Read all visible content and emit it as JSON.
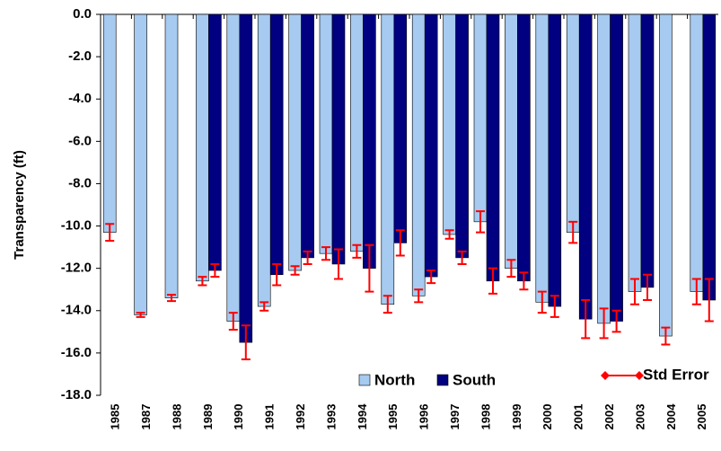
{
  "chart_data": {
    "type": "bar",
    "y_label": "Transparency (ft)",
    "categories": [
      "1985",
      "1987",
      "1988",
      "1989",
      "1990",
      "1991",
      "1992",
      "1993",
      "1994",
      "1995",
      "1996",
      "1997",
      "1998",
      "1999",
      "2000",
      "2001",
      "2002",
      "2003",
      "2004",
      "2005"
    ],
    "series": [
      {
        "name": "North",
        "color": "#a6caf0",
        "values": [
          -10.3,
          -14.2,
          -13.4,
          -12.6,
          -14.5,
          -13.8,
          -12.1,
          -11.3,
          -11.2,
          -13.7,
          -13.3,
          -10.4,
          -9.8,
          -12.0,
          -13.6,
          -10.3,
          -14.6,
          -13.1,
          -15.2,
          -13.1
        ],
        "error": [
          0.4,
          0.1,
          0.15,
          0.2,
          0.4,
          0.2,
          0.2,
          0.3,
          0.3,
          0.4,
          0.3,
          0.2,
          0.5,
          0.4,
          0.5,
          0.5,
          0.7,
          0.6,
          0.4,
          0.6
        ]
      },
      {
        "name": "South",
        "color": "#000080",
        "values": [
          null,
          null,
          null,
          -12.1,
          -15.5,
          -12.3,
          -11.5,
          -11.8,
          -12.0,
          -10.8,
          -12.4,
          -11.5,
          -12.6,
          -12.6,
          -13.8,
          -14.4,
          -14.5,
          -12.9,
          null,
          -13.5
        ],
        "error": [
          null,
          null,
          null,
          0.3,
          0.8,
          0.5,
          0.3,
          0.7,
          1.1,
          0.6,
          0.3,
          0.3,
          0.6,
          0.4,
          0.5,
          0.9,
          0.5,
          0.6,
          null,
          1.0
        ]
      }
    ],
    "error_name": "Std Error",
    "error_color": "#ff0000",
    "ylim": [
      -18,
      0
    ],
    "yticks": [
      {
        "value": 0,
        "label": "0.0"
      },
      {
        "value": -2,
        "label": "-2.0"
      },
      {
        "value": -4,
        "label": "-4.0"
      },
      {
        "value": -6,
        "label": "-6.0"
      },
      {
        "value": -8,
        "label": "-8.0"
      },
      {
        "value": -10,
        "label": "-10.0"
      },
      {
        "value": -12,
        "label": "-12.0"
      },
      {
        "value": -14,
        "label": "-14.0"
      },
      {
        "value": -16,
        "label": "-16.0"
      },
      {
        "value": -18,
        "label": "-18.0"
      }
    ]
  }
}
